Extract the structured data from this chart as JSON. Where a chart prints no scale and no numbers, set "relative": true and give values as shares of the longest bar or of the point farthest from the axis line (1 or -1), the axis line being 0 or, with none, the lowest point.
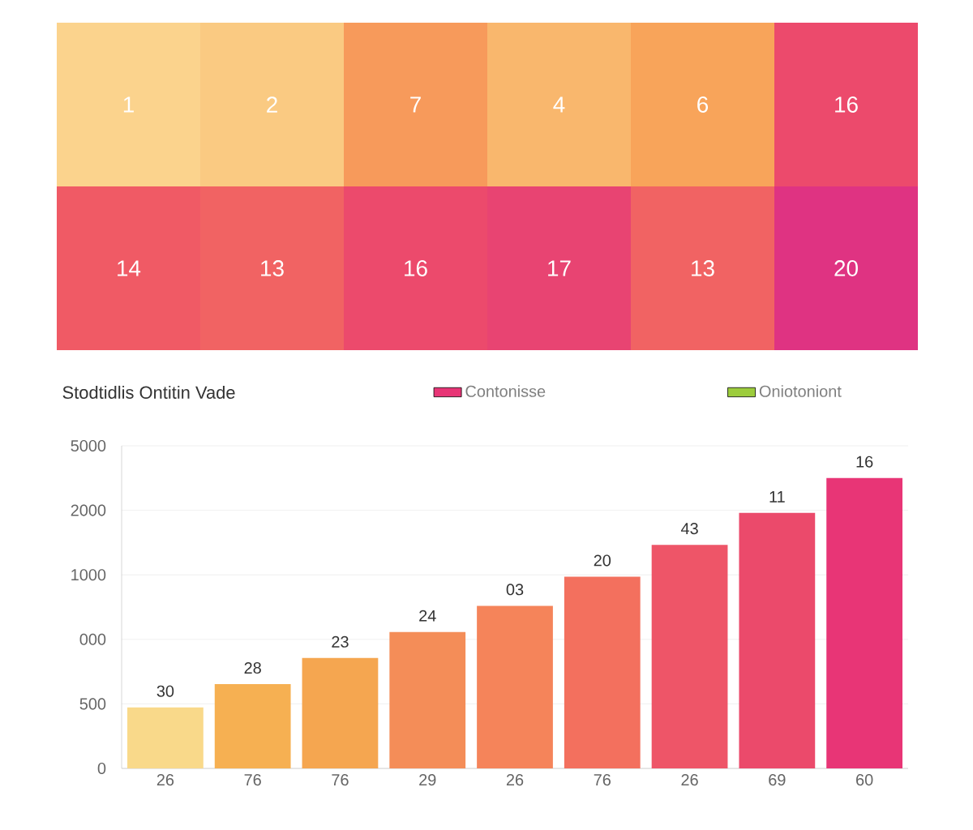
{
  "chart_data": [
    {
      "type": "heatmap",
      "categories": [
        null,
        null,
        null,
        null,
        null,
        null
      ],
      "y_categories": [
        null,
        null
      ],
      "cells": [
        [
          1,
          2,
          7,
          4,
          6,
          16
        ],
        [
          14,
          13,
          16,
          17,
          13,
          20
        ]
      ],
      "colors": [
        "#fbd38d",
        "#f8a65a",
        "#f57a5e",
        "#ee4e68",
        "#df3382"
      ],
      "data_labels": true
    },
    {
      "type": "bar",
      "title": "Stodtidlis Ontitin Vade",
      "relative": true,
      "categories": [
        "26",
        "76",
        "76",
        "29",
        "26",
        "76",
        "26",
        "69",
        "60"
      ],
      "series": [
        {
          "name": "Contonisse",
          "color": "#e83576",
          "colors": [
            "#f9d98a",
            "#f6b052",
            "#f5a650",
            "#f48d58",
            "#f5845a",
            "#f3705e",
            "#ee5568",
            "#eb4a6b",
            "#e83576"
          ],
          "values": [
            0.21,
            0.29,
            0.38,
            0.47,
            0.56,
            0.66,
            0.77,
            0.88,
            1
          ]
        },
        {
          "name": "Oniotoniont",
          "color": "#9ccc3c",
          "values": [
            null,
            null,
            null,
            null,
            null,
            null,
            null,
            null,
            null
          ]
        }
      ],
      "annotations": [
        "30",
        "28",
        "23",
        "24",
        "03",
        "20",
        "43",
        "11",
        "16",
        "0",
        "500",
        "000",
        "1000",
        "2000",
        "5000"
      ],
      "grid": "y",
      "legend": "top"
    }
  ]
}
